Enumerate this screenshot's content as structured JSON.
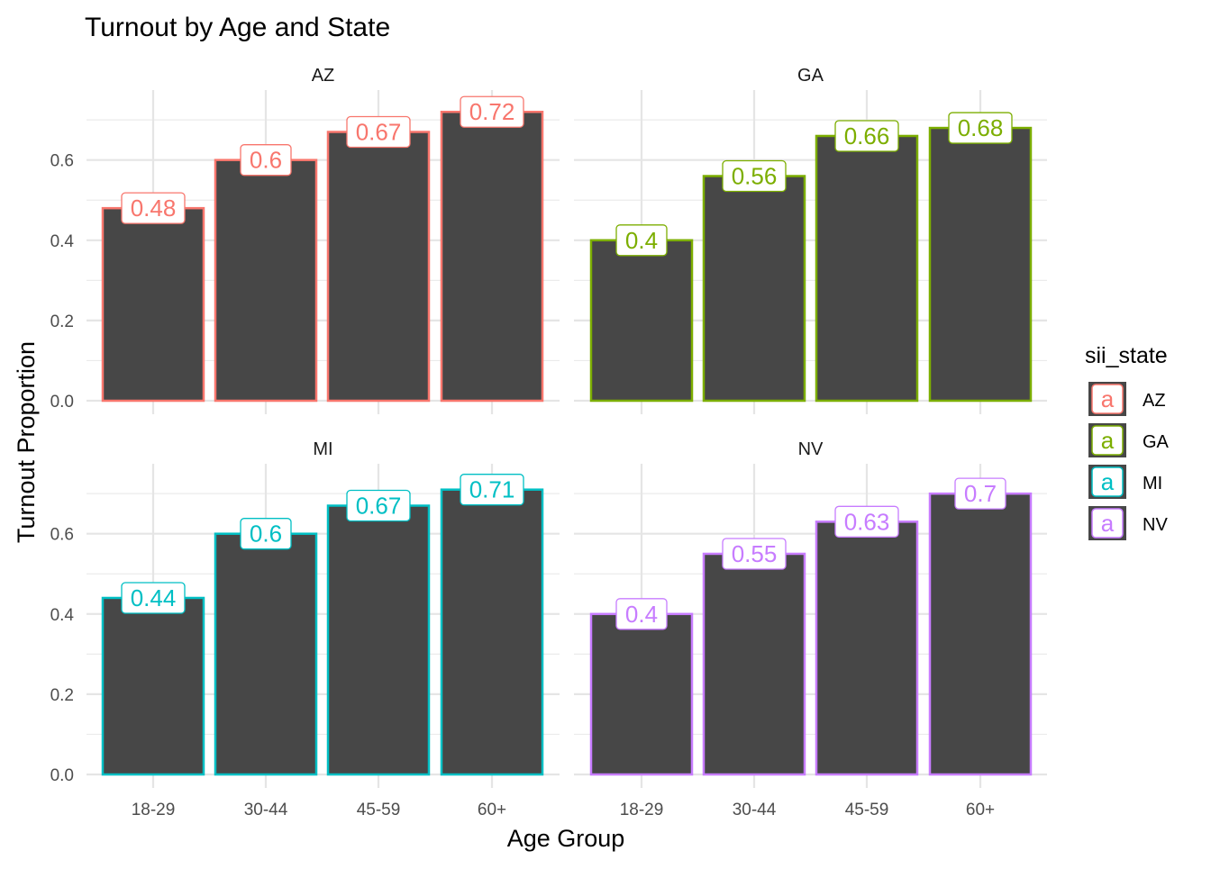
{
  "chart_data": {
    "type": "bar",
    "title": "Turnout by Age and State",
    "xlabel": "Age Group",
    "ylabel": "Turnout Proportion",
    "categories": [
      "18-29",
      "30-44",
      "45-59",
      "60+"
    ],
    "yticks": [
      "0.0",
      "0.2",
      "0.4",
      "0.6"
    ],
    "ylim": [
      0,
      0.74
    ],
    "grid": true,
    "legend": {
      "title": "sii_state",
      "key_glyph": "a",
      "position": "right",
      "entries": [
        {
          "label": "AZ",
          "color": "#F8766D"
        },
        {
          "label": "GA",
          "color": "#7CAE00"
        },
        {
          "label": "MI",
          "color": "#00BFC4"
        },
        {
          "label": "NV",
          "color": "#C77CFF"
        }
      ]
    },
    "bar_fill": "#474747",
    "facets": [
      {
        "name": "AZ",
        "color": "#F8766D",
        "values": [
          0.48,
          0.6,
          0.67,
          0.72
        ],
        "labels": [
          "0.48",
          "0.6",
          "0.67",
          "0.72"
        ]
      },
      {
        "name": "GA",
        "color": "#7CAE00",
        "values": [
          0.4,
          0.56,
          0.66,
          0.68
        ],
        "labels": [
          "0.4",
          "0.56",
          "0.66",
          "0.68"
        ]
      },
      {
        "name": "MI",
        "color": "#00BFC4",
        "values": [
          0.44,
          0.6,
          0.67,
          0.71
        ],
        "labels": [
          "0.44",
          "0.6",
          "0.67",
          "0.71"
        ]
      },
      {
        "name": "NV",
        "color": "#C77CFF",
        "values": [
          0.4,
          0.55,
          0.63,
          0.7
        ],
        "labels": [
          "0.4",
          "0.55",
          "0.63",
          "0.7"
        ]
      }
    ]
  }
}
